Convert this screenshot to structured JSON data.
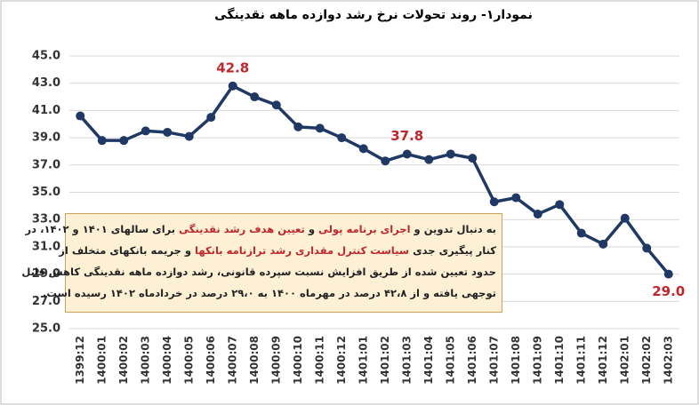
{
  "chart_data": {
    "type": "line",
    "title": "نمودار۱- روند تحولات نرخ رشد دوازده ماهه نقدینگی",
    "categories": [
      "1399:12",
      "1400:01",
      "1400:02",
      "1400:03",
      "1400:04",
      "1400:05",
      "1400:06",
      "1400:07",
      "1400:08",
      "1400:09",
      "1400:10",
      "1400:11",
      "1400:12",
      "1401:01",
      "1401:02",
      "1401:03",
      "1401:04",
      "1401:05",
      "1401:06",
      "1401:07",
      "1401:08",
      "1401:09",
      "1401:10",
      "1401:11",
      "1401:12",
      "1402:01",
      "1402:02",
      "1402:03"
    ],
    "values": [
      40.6,
      38.8,
      38.8,
      39.5,
      39.4,
      39.1,
      40.5,
      42.8,
      42.0,
      41.4,
      39.8,
      39.7,
      39.0,
      38.2,
      37.3,
      37.8,
      37.4,
      37.8,
      37.5,
      34.3,
      34.6,
      33.4,
      34.1,
      32.0,
      31.2,
      33.1,
      30.9,
      29.0
    ],
    "value_labels": [
      null,
      null,
      null,
      null,
      null,
      null,
      null,
      "42.8",
      null,
      null,
      null,
      null,
      null,
      null,
      null,
      "37.8",
      null,
      null,
      null,
      null,
      null,
      null,
      null,
      null,
      null,
      null,
      null,
      "29.0"
    ],
    "color": "#1f3864",
    "label_color": "#c0272d",
    "ylim": [
      25,
      45
    ],
    "yticks": [
      {
        "value": 25,
        "label": "25.0"
      },
      {
        "value": 27,
        "label": "27.0"
      },
      {
        "value": 29,
        "label": "29.0"
      },
      {
        "value": 31,
        "label": "31.0"
      },
      {
        "value": 33,
        "label": "33.0"
      },
      {
        "value": 35,
        "label": "35.0"
      },
      {
        "value": 37,
        "label": "37.0"
      },
      {
        "value": 39,
        "label": "39.0"
      },
      {
        "value": 41,
        "label": "41.0"
      },
      {
        "value": 43,
        "label": "43.0"
      },
      {
        "value": 45,
        "label": "45.0"
      }
    ],
    "grid": true,
    "annotation": [
      [
        {
          "text": "به دنبال تدوین و "
        },
        {
          "text": "اجرای برنامه پولی",
          "color": "#c0272d"
        },
        {
          "text": " و "
        },
        {
          "text": "تعیین هدف رشد نقدینگی",
          "color": "#c0272d"
        },
        {
          "text": " برای سالهای ۱۴۰۱ و ۱۴۰۲، در"
        }
      ],
      [
        {
          "text": "کنار پیگیری جدی "
        },
        {
          "text": "سیاست کنترل مقداری رشد ترازنامه بانکها",
          "color": "#c0272d"
        },
        {
          "text": " و جریمه بانکهای متخلف از"
        }
      ],
      [
        {
          "text": "حدود تعیین شده از طریق افزایش نسبت سپرده قانونی، رشد دوازده ماهه نقدینگی کاهش قابل"
        }
      ],
      [
        {
          "text": "توجهی یافته و از ۴۲،۸ درصد در مهرماه ۱۴۰۰ به ۲۹،۰ درصد در خردادماه ۱۴۰۲ رسیده است."
        }
      ]
    ]
  }
}
